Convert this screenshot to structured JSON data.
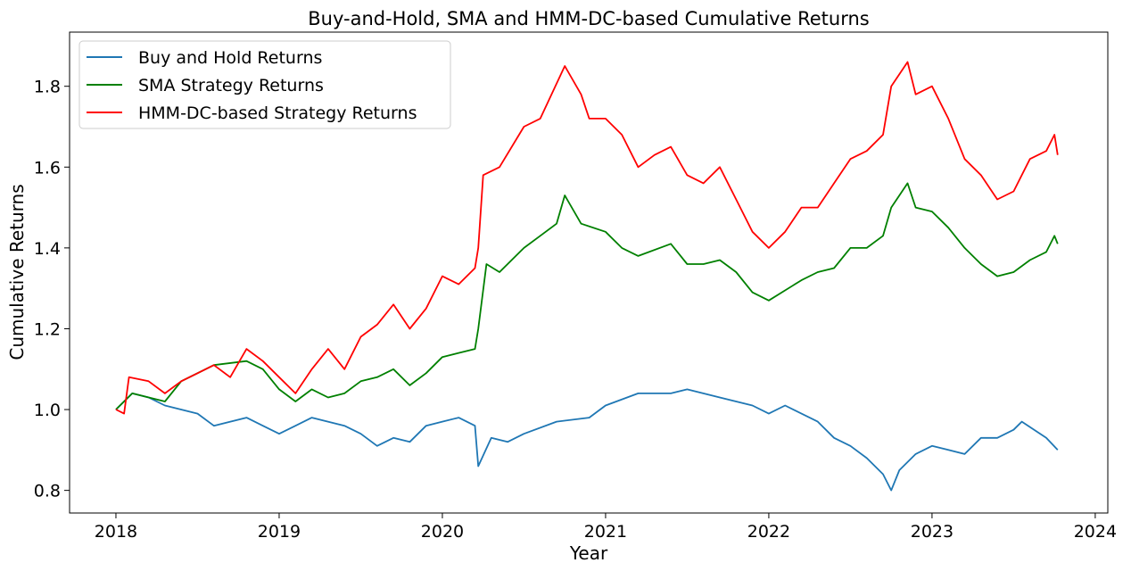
{
  "chart_data": {
    "type": "line",
    "title": "Buy-and-Hold, SMA and HMM-DC-based Cumulative Returns",
    "xlabel": "Year",
    "ylabel": "Cumulative Returns",
    "xlim": [
      2017.716,
      2024.077
    ],
    "ylim": [
      0.744,
      1.934
    ],
    "xticks": [
      2018,
      2019,
      2020,
      2021,
      2022,
      2023,
      2024
    ],
    "xtick_labels": [
      "2018",
      "2019",
      "2020",
      "2021",
      "2022",
      "2023",
      "2024"
    ],
    "yticks": [
      0.8,
      1.0,
      1.2,
      1.4,
      1.6,
      1.8
    ],
    "ytick_labels": [
      "0.8",
      "1.0",
      "1.2",
      "1.4",
      "1.6",
      "1.8"
    ],
    "grid": false,
    "legend_placement": "top-left",
    "series": [
      {
        "name": "Buy and Hold Returns",
        "color": "#1f77b4",
        "x": [
          2018.0,
          2018.1,
          2018.2,
          2018.3,
          2018.5,
          2018.6,
          2018.8,
          2018.9,
          2019.0,
          2019.1,
          2019.2,
          2019.4,
          2019.5,
          2019.6,
          2019.7,
          2019.8,
          2019.9,
          2020.0,
          2020.1,
          2020.2,
          2020.22,
          2020.3,
          2020.4,
          2020.5,
          2020.7,
          2020.9,
          2021.0,
          2021.2,
          2021.4,
          2021.5,
          2021.7,
          2021.9,
          2022.0,
          2022.1,
          2022.3,
          2022.4,
          2022.5,
          2022.6,
          2022.7,
          2022.75,
          2022.8,
          2022.9,
          2023.0,
          2023.1,
          2023.2,
          2023.3,
          2023.4,
          2023.5,
          2023.55,
          2023.7,
          2023.77
        ],
        "y": [
          1.0,
          1.04,
          1.03,
          1.01,
          0.99,
          0.96,
          0.98,
          0.96,
          0.94,
          0.96,
          0.98,
          0.96,
          0.94,
          0.91,
          0.93,
          0.92,
          0.96,
          0.97,
          0.98,
          0.96,
          0.86,
          0.93,
          0.92,
          0.94,
          0.97,
          0.98,
          1.01,
          1.04,
          1.04,
          1.05,
          1.03,
          1.01,
          0.99,
          1.01,
          0.97,
          0.93,
          0.91,
          0.88,
          0.84,
          0.8,
          0.85,
          0.89,
          0.91,
          0.9,
          0.89,
          0.93,
          0.93,
          0.95,
          0.97,
          0.93,
          0.9
        ]
      },
      {
        "name": "SMA Strategy Returns",
        "color": "#008000",
        "x": [
          2018.0,
          2018.1,
          2018.3,
          2018.4,
          2018.6,
          2018.8,
          2018.9,
          2019.0,
          2019.1,
          2019.2,
          2019.3,
          2019.4,
          2019.5,
          2019.6,
          2019.7,
          2019.8,
          2019.9,
          2020.0,
          2020.1,
          2020.2,
          2020.22,
          2020.27,
          2020.35,
          2020.5,
          2020.6,
          2020.7,
          2020.75,
          2020.85,
          2021.0,
          2021.1,
          2021.2,
          2021.4,
          2021.5,
          2021.6,
          2021.7,
          2021.8,
          2021.9,
          2022.0,
          2022.2,
          2022.3,
          2022.4,
          2022.5,
          2022.6,
          2022.7,
          2022.75,
          2022.85,
          2022.9,
          2023.0,
          2023.1,
          2023.2,
          2023.3,
          2023.4,
          2023.5,
          2023.6,
          2023.7,
          2023.75,
          2023.77
        ],
        "y": [
          1.0,
          1.04,
          1.02,
          1.07,
          1.11,
          1.12,
          1.1,
          1.05,
          1.02,
          1.05,
          1.03,
          1.04,
          1.07,
          1.08,
          1.1,
          1.06,
          1.09,
          1.13,
          1.14,
          1.15,
          1.2,
          1.36,
          1.34,
          1.4,
          1.43,
          1.46,
          1.53,
          1.46,
          1.44,
          1.4,
          1.38,
          1.41,
          1.36,
          1.36,
          1.37,
          1.34,
          1.29,
          1.27,
          1.32,
          1.34,
          1.35,
          1.4,
          1.4,
          1.43,
          1.5,
          1.56,
          1.5,
          1.49,
          1.45,
          1.4,
          1.36,
          1.33,
          1.34,
          1.37,
          1.39,
          1.43,
          1.41
        ]
      },
      {
        "name": "HMM-DC-based Strategy Returns",
        "color": "#ff0000",
        "x": [
          2018.0,
          2018.05,
          2018.08,
          2018.2,
          2018.3,
          2018.4,
          2018.5,
          2018.6,
          2018.7,
          2018.8,
          2018.9,
          2019.0,
          2019.1,
          2019.2,
          2019.3,
          2019.4,
          2019.5,
          2019.6,
          2019.7,
          2019.8,
          2019.9,
          2020.0,
          2020.1,
          2020.2,
          2020.22,
          2020.25,
          2020.35,
          2020.5,
          2020.6,
          2020.75,
          2020.85,
          2020.9,
          2021.0,
          2021.1,
          2021.2,
          2021.3,
          2021.4,
          2021.5,
          2021.6,
          2021.7,
          2021.8,
          2021.9,
          2022.0,
          2022.1,
          2022.2,
          2022.3,
          2022.4,
          2022.5,
          2022.6,
          2022.7,
          2022.75,
          2022.85,
          2022.9,
          2023.0,
          2023.1,
          2023.2,
          2023.3,
          2023.4,
          2023.5,
          2023.6,
          2023.7,
          2023.75,
          2023.77
        ],
        "y": [
          1.0,
          0.99,
          1.08,
          1.07,
          1.04,
          1.07,
          1.09,
          1.11,
          1.08,
          1.15,
          1.12,
          1.08,
          1.04,
          1.1,
          1.15,
          1.1,
          1.18,
          1.21,
          1.26,
          1.2,
          1.25,
          1.33,
          1.31,
          1.35,
          1.4,
          1.58,
          1.6,
          1.7,
          1.72,
          1.85,
          1.78,
          1.72,
          1.72,
          1.68,
          1.6,
          1.63,
          1.65,
          1.58,
          1.56,
          1.6,
          1.52,
          1.44,
          1.4,
          1.44,
          1.5,
          1.5,
          1.56,
          1.62,
          1.64,
          1.68,
          1.8,
          1.86,
          1.78,
          1.8,
          1.72,
          1.62,
          1.58,
          1.52,
          1.54,
          1.62,
          1.64,
          1.68,
          1.63
        ]
      }
    ]
  }
}
